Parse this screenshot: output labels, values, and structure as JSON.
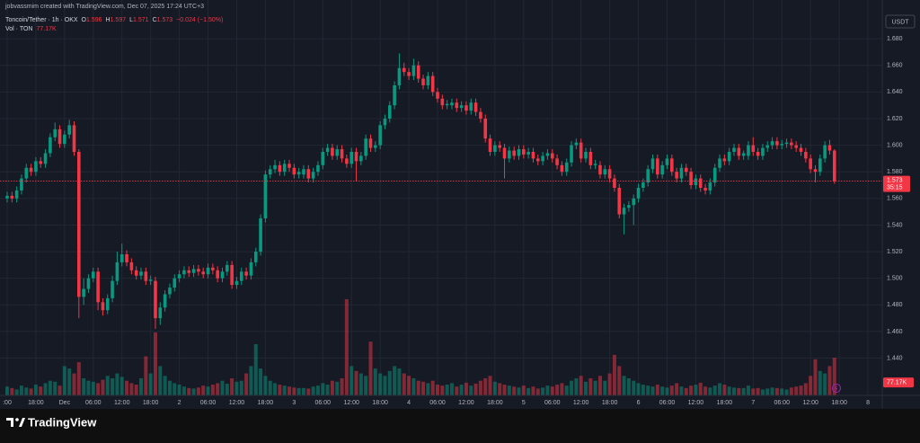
{
  "header": {
    "credit": "jobvassmim created with TradingView.com, Dec 07, 2025 17:24 UTC+3"
  },
  "legend": {
    "symbol": "Toncoin/Tether · 1h · OKX",
    "items": [
      {
        "label": "O",
        "value": "1.596"
      },
      {
        "label": "H",
        "value": "1.597"
      },
      {
        "label": "L",
        "value": "1.571"
      },
      {
        "label": "C",
        "value": "1.573"
      }
    ],
    "change": "−0.024 (−1.50%)",
    "volume_name": "Vol · TON",
    "volume_value": "77.17K"
  },
  "chart_data": {
    "type": "candlestick",
    "currency": "USDT",
    "up_color": "#089981",
    "down_color": "#f23645",
    "grid": true,
    "countdown": "35:15",
    "open": [
      1.56,
      1.562,
      1.56,
      1.566,
      1.575,
      1.583,
      1.58,
      1.588,
      1.586,
      1.594,
      1.606,
      1.612,
      1.601,
      1.608,
      1.615,
      1.595,
      1.486,
      1.492,
      1.5,
      1.505,
      1.482,
      1.476,
      1.485,
      1.498,
      1.512,
      1.518,
      1.512,
      1.506,
      1.502,
      1.505,
      1.498,
      1.498,
      1.47,
      1.478,
      1.488,
      1.493,
      1.5,
      1.503,
      1.506,
      1.504,
      1.507,
      1.505,
      1.503,
      1.508,
      1.506,
      1.5,
      1.505,
      1.51,
      1.495,
      1.498,
      1.505,
      1.502,
      1.512,
      1.52,
      1.545,
      1.578,
      1.582,
      1.585,
      1.58,
      1.586,
      1.583,
      1.578,
      1.578,
      1.582,
      1.575,
      1.58,
      1.585,
      1.595,
      1.598,
      1.592,
      1.597,
      1.59,
      1.586,
      1.595,
      1.588,
      1.592,
      1.605,
      1.598,
      1.6,
      1.615,
      1.62,
      1.63,
      1.645,
      1.658,
      1.655,
      1.652,
      1.66,
      1.65,
      1.645,
      1.652,
      1.64,
      1.635,
      1.63,
      1.63,
      1.632,
      1.628,
      1.63,
      1.626,
      1.632,
      1.625,
      1.62,
      1.605,
      1.595,
      1.6,
      1.598,
      1.59,
      1.596,
      1.592,
      1.597,
      1.593,
      1.595,
      1.59,
      1.588,
      1.592,
      1.594,
      1.59,
      1.585,
      1.58,
      1.587,
      1.6,
      1.602,
      1.59,
      1.595,
      1.585,
      1.585,
      1.578,
      1.582,
      1.575,
      1.568,
      1.548,
      1.553,
      1.555,
      1.56,
      1.568,
      1.572,
      1.582,
      1.59,
      1.578,
      1.585,
      1.59,
      1.58,
      1.575,
      1.583,
      1.58,
      1.57,
      1.575,
      1.568,
      1.566,
      1.572,
      1.583,
      1.59,
      1.588,
      1.595,
      1.598,
      1.592,
      1.592,
      1.6,
      1.595,
      1.592,
      1.598,
      1.6,
      1.603,
      1.6,
      1.601,
      1.602,
      1.6,
      1.598,
      1.595,
      1.59,
      1.582,
      1.58,
      1.59,
      1.6,
      1.596
    ],
    "high": [
      1.565,
      1.565,
      1.569,
      1.578,
      1.586,
      1.586,
      1.591,
      1.591,
      1.597,
      1.609,
      1.617,
      1.615,
      1.611,
      1.619,
      1.618,
      1.597,
      1.5,
      1.503,
      1.508,
      1.508,
      1.485,
      1.488,
      1.502,
      1.52,
      1.526,
      1.521,
      1.515,
      1.509,
      1.508,
      1.508,
      1.502,
      1.501,
      1.482,
      1.491,
      1.496,
      1.503,
      1.506,
      1.509,
      1.509,
      1.51,
      1.51,
      1.508,
      1.511,
      1.511,
      1.509,
      1.508,
      1.513,
      1.513,
      1.501,
      1.508,
      1.508,
      1.515,
      1.523,
      1.548,
      1.581,
      1.585,
      1.589,
      1.588,
      1.589,
      1.589,
      1.586,
      1.583,
      1.585,
      1.585,
      1.583,
      1.588,
      1.598,
      1.601,
      1.601,
      1.6,
      1.6,
      1.593,
      1.598,
      1.598,
      1.595,
      1.608,
      1.608,
      1.603,
      1.618,
      1.623,
      1.633,
      1.648,
      1.669,
      1.662,
      1.658,
      1.665,
      1.663,
      1.653,
      1.655,
      1.655,
      1.643,
      1.638,
      1.634,
      1.635,
      1.635,
      1.633,
      1.633,
      1.635,
      1.635,
      1.628,
      1.623,
      1.608,
      1.603,
      1.603,
      1.601,
      1.599,
      1.599,
      1.6,
      1.6,
      1.598,
      1.598,
      1.593,
      1.595,
      1.597,
      1.597,
      1.593,
      1.588,
      1.59,
      1.603,
      1.605,
      1.605,
      1.598,
      1.598,
      1.589,
      1.588,
      1.585,
      1.585,
      1.578,
      1.571,
      1.556,
      1.558,
      1.563,
      1.571,
      1.575,
      1.585,
      1.593,
      1.593,
      1.588,
      1.593,
      1.593,
      1.583,
      1.586,
      1.586,
      1.583,
      1.578,
      1.578,
      1.571,
      1.575,
      1.586,
      1.593,
      1.593,
      1.598,
      1.601,
      1.601,
      1.596,
      1.603,
      1.606,
      1.598,
      1.601,
      1.603,
      1.606,
      1.606,
      1.604,
      1.605,
      1.605,
      1.603,
      1.601,
      1.598,
      1.593,
      1.585,
      1.593,
      1.603,
      1.604,
      1.597
    ],
    "low": [
      1.557,
      1.557,
      1.557,
      1.563,
      1.572,
      1.577,
      1.577,
      1.583,
      1.583,
      1.591,
      1.603,
      1.598,
      1.598,
      1.605,
      1.592,
      1.47,
      1.48,
      1.489,
      1.497,
      1.476,
      1.472,
      1.473,
      1.482,
      1.495,
      1.509,
      1.509,
      1.503,
      1.499,
      1.499,
      1.495,
      1.495,
      1.462,
      1.465,
      1.475,
      1.485,
      1.49,
      1.497,
      1.5,
      1.501,
      1.501,
      1.502,
      1.5,
      1.5,
      1.503,
      1.497,
      1.497,
      1.502,
      1.492,
      1.492,
      1.495,
      1.499,
      1.499,
      1.509,
      1.517,
      1.542,
      1.575,
      1.579,
      1.577,
      1.577,
      1.58,
      1.575,
      1.575,
      1.575,
      1.572,
      1.572,
      1.577,
      1.582,
      1.592,
      1.589,
      1.589,
      1.587,
      1.583,
      1.583,
      1.573,
      1.585,
      1.589,
      1.595,
      1.595,
      1.597,
      1.612,
      1.617,
      1.627,
      1.642,
      1.652,
      1.649,
      1.649,
      1.647,
      1.642,
      1.642,
      1.637,
      1.632,
      1.627,
      1.627,
      1.627,
      1.625,
      1.625,
      1.623,
      1.623,
      1.622,
      1.617,
      1.602,
      1.592,
      1.592,
      1.595,
      1.575,
      1.587,
      1.589,
      1.589,
      1.59,
      1.59,
      1.587,
      1.585,
      1.585,
      1.589,
      1.587,
      1.582,
      1.577,
      1.577,
      1.584,
      1.597,
      1.587,
      1.587,
      1.582,
      1.582,
      1.575,
      1.575,
      1.572,
      1.565,
      1.545,
      1.533,
      1.55,
      1.54,
      1.557,
      1.565,
      1.569,
      1.579,
      1.575,
      1.575,
      1.582,
      1.577,
      1.572,
      1.572,
      1.577,
      1.567,
      1.567,
      1.565,
      1.563,
      1.563,
      1.569,
      1.58,
      1.585,
      1.585,
      1.592,
      1.589,
      1.589,
      1.589,
      1.592,
      1.589,
      1.589,
      1.595,
      1.597,
      1.597,
      1.597,
      1.598,
      1.597,
      1.595,
      1.592,
      1.587,
      1.579,
      1.572,
      1.577,
      1.587,
      1.593,
      1.571
    ],
    "close": [
      1.562,
      1.56,
      1.566,
      1.575,
      1.583,
      1.58,
      1.588,
      1.586,
      1.594,
      1.606,
      1.612,
      1.601,
      1.608,
      1.615,
      1.595,
      1.486,
      1.492,
      1.5,
      1.505,
      1.482,
      1.476,
      1.485,
      1.498,
      1.512,
      1.518,
      1.512,
      1.506,
      1.502,
      1.505,
      1.498,
      1.499,
      1.47,
      1.478,
      1.488,
      1.493,
      1.5,
      1.503,
      1.506,
      1.504,
      1.507,
      1.505,
      1.503,
      1.508,
      1.506,
      1.5,
      1.505,
      1.51,
      1.495,
      1.498,
      1.505,
      1.502,
      1.512,
      1.52,
      1.545,
      1.578,
      1.582,
      1.585,
      1.58,
      1.586,
      1.583,
      1.578,
      1.58,
      1.582,
      1.575,
      1.58,
      1.585,
      1.595,
      1.598,
      1.592,
      1.597,
      1.59,
      1.586,
      1.595,
      1.588,
      1.592,
      1.605,
      1.598,
      1.6,
      1.615,
      1.62,
      1.63,
      1.645,
      1.658,
      1.655,
      1.652,
      1.66,
      1.65,
      1.645,
      1.652,
      1.64,
      1.635,
      1.63,
      1.631,
      1.632,
      1.628,
      1.63,
      1.626,
      1.632,
      1.625,
      1.62,
      1.605,
      1.595,
      1.6,
      1.598,
      1.59,
      1.596,
      1.592,
      1.597,
      1.593,
      1.595,
      1.59,
      1.588,
      1.592,
      1.594,
      1.59,
      1.585,
      1.58,
      1.587,
      1.6,
      1.602,
      1.59,
      1.595,
      1.585,
      1.586,
      1.578,
      1.582,
      1.575,
      1.568,
      1.548,
      1.553,
      1.555,
      1.56,
      1.568,
      1.572,
      1.582,
      1.59,
      1.578,
      1.585,
      1.59,
      1.58,
      1.575,
      1.583,
      1.58,
      1.57,
      1.575,
      1.568,
      1.566,
      1.572,
      1.583,
      1.59,
      1.588,
      1.595,
      1.598,
      1.592,
      1.594,
      1.6,
      1.595,
      1.592,
      1.598,
      1.6,
      1.603,
      1.6,
      1.601,
      1.602,
      1.6,
      1.598,
      1.595,
      1.59,
      1.582,
      1.58,
      1.59,
      1.6,
      1.596,
      1.573
    ],
    "volume": [
      18000,
      15000,
      12000,
      20000,
      16000,
      14000,
      22000,
      18000,
      25000,
      30000,
      28000,
      20000,
      60000,
      55000,
      45000,
      68000,
      35000,
      30000,
      28000,
      25000,
      32000,
      40000,
      35000,
      45000,
      38000,
      30000,
      25000,
      22000,
      35000,
      80000,
      45000,
      129000,
      60000,
      40000,
      30000,
      25000,
      22000,
      18000,
      15000,
      14000,
      16000,
      20000,
      18000,
      22000,
      25000,
      30000,
      24000,
      35000,
      28000,
      30000,
      45000,
      60000,
      105000,
      55000,
      40000,
      30000,
      25000,
      22000,
      20000,
      18000,
      16000,
      15000,
      15000,
      14000,
      18000,
      20000,
      25000,
      22000,
      30000,
      28000,
      35000,
      197000,
      60000,
      50000,
      45000,
      40000,
      110000,
      55000,
      45000,
      40000,
      50000,
      60000,
      55000,
      45000,
      40000,
      35000,
      30000,
      28000,
      25000,
      30000,
      22000,
      20000,
      22000,
      25000,
      18000,
      22000,
      26000,
      20000,
      24000,
      30000,
      35000,
      40000,
      28000,
      25000,
      22000,
      20000,
      18000,
      16000,
      20000,
      15000,
      18000,
      14000,
      16000,
      20000,
      18000,
      22000,
      25000,
      20000,
      30000,
      35000,
      40000,
      28000,
      35000,
      30000,
      40000,
      30000,
      45000,
      83000,
      60000,
      40000,
      35000,
      30000,
      25000,
      22000,
      20000,
      18000,
      22000,
      18000,
      16000,
      20000,
      25000,
      18000,
      15000,
      20000,
      22000,
      26000,
      18000,
      16000,
      20000,
      25000,
      22000,
      18000,
      16000,
      15000,
      15000,
      20000,
      14000,
      15000,
      12000,
      14000,
      16000,
      15000,
      14000,
      12000,
      16000,
      18000,
      20000,
      25000,
      40000,
      74000,
      50000,
      45000,
      60000,
      77170
    ],
    "ylim": [
      1.412,
      1.699
    ],
    "yticks": [
      {
        "value": 1.44,
        "label": "1.440"
      },
      {
        "value": 1.46,
        "label": "1.460"
      },
      {
        "value": 1.48,
        "label": "1.480"
      },
      {
        "value": 1.5,
        "label": "1.500"
      },
      {
        "value": 1.52,
        "label": "1.520"
      },
      {
        "value": 1.54,
        "label": "1.540"
      },
      {
        "value": 1.56,
        "label": "1.560"
      },
      {
        "value": 1.58,
        "label": "1.580"
      },
      {
        "value": 1.6,
        "label": "1.600"
      },
      {
        "value": 1.62,
        "label": "1.620"
      },
      {
        "value": 1.64,
        "label": "1.640"
      },
      {
        "value": 1.66,
        "label": "1.660"
      },
      {
        "value": 1.68,
        "label": "1.680"
      }
    ],
    "xlim": [
      -1.5,
      183.0
    ],
    "xticks": [
      {
        "value": 0,
        "label": ":00"
      },
      {
        "value": 6,
        "label": "18:00"
      },
      {
        "value": 12,
        "label": "Dec"
      },
      {
        "value": 18,
        "label": "06:00"
      },
      {
        "value": 24,
        "label": "12:00"
      },
      {
        "value": 30,
        "label": "18:00"
      },
      {
        "value": 36,
        "label": "2"
      },
      {
        "value": 42,
        "label": "06:00"
      },
      {
        "value": 48,
        "label": "12:00"
      },
      {
        "value": 54,
        "label": "18:00"
      },
      {
        "value": 60,
        "label": "3"
      },
      {
        "value": 66,
        "label": "06:00"
      },
      {
        "value": 72,
        "label": "12:00"
      },
      {
        "value": 78,
        "label": "18:00"
      },
      {
        "value": 84,
        "label": "4"
      },
      {
        "value": 90,
        "label": "06:00"
      },
      {
        "value": 96,
        "label": "12:00"
      },
      {
        "value": 102,
        "label": "18:00"
      },
      {
        "value": 108,
        "label": "5"
      },
      {
        "value": 114,
        "label": "06:00"
      },
      {
        "value": 120,
        "label": "12:00"
      },
      {
        "value": 126,
        "label": "18:00"
      },
      {
        "value": 132,
        "label": "6"
      },
      {
        "value": 138,
        "label": "06:00"
      },
      {
        "value": 144,
        "label": "12:00"
      },
      {
        "value": 150,
        "label": "18:00"
      },
      {
        "value": 156,
        "label": "7"
      },
      {
        "value": 162,
        "label": "06:00"
      },
      {
        "value": 168,
        "label": "12:00"
      },
      {
        "value": 174,
        "label": "18:00"
      },
      {
        "value": 180,
        "label": "8"
      }
    ]
  },
  "footer": {
    "brand": "TradingView"
  }
}
